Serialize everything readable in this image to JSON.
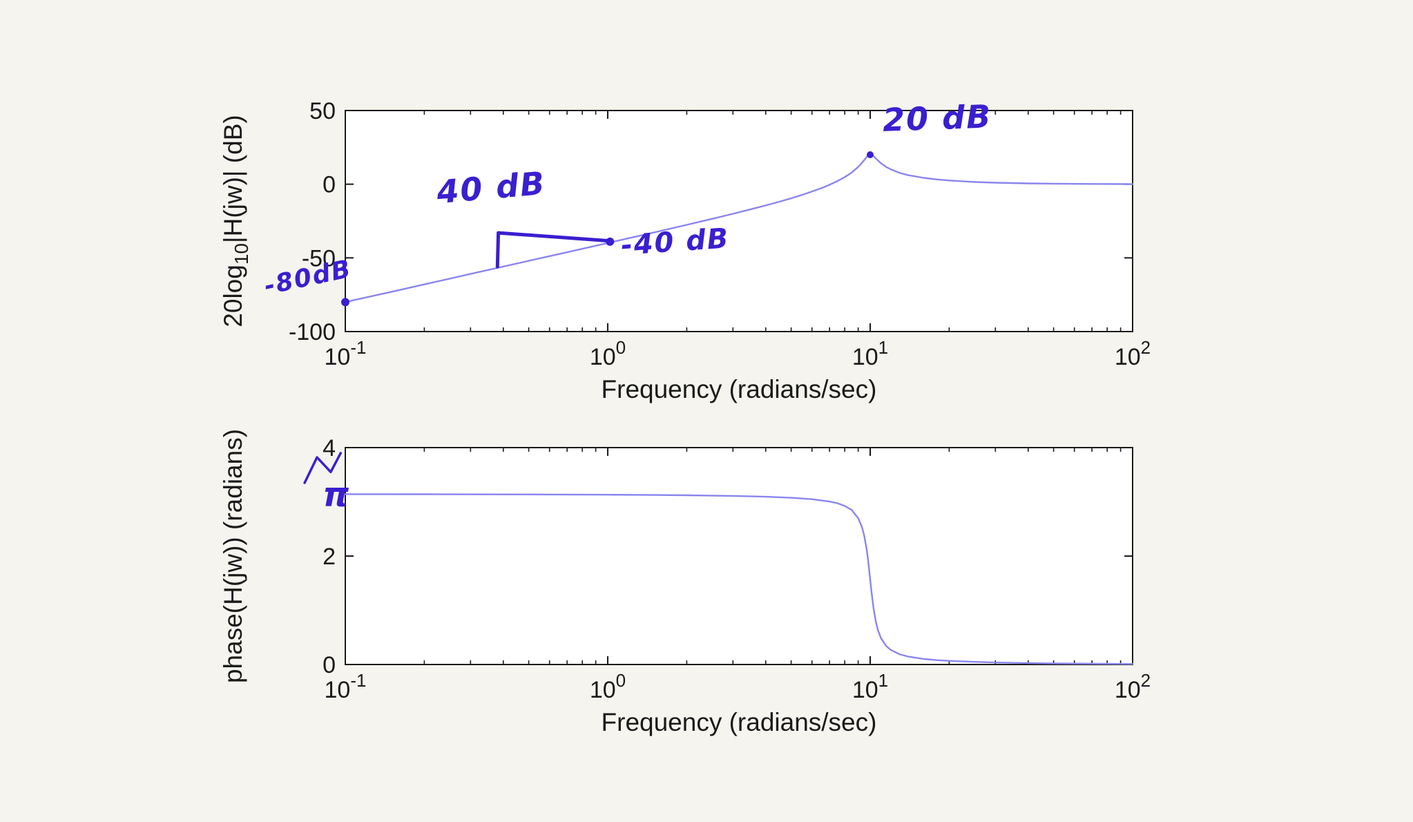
{
  "figure": {
    "background": "#f5f4ef",
    "plot_background": "#ffffff"
  },
  "colors": {
    "curve": "#8a85ee",
    "ink": "#3a1fd0",
    "axis": "#1a1a1a"
  },
  "chart_data": [
    {
      "id": "magnitude",
      "type": "line",
      "xscale": "log",
      "grid": false,
      "xlabel": "Frequency (radians/sec)",
      "ylabel": "20log10|H(jw)| (dB)",
      "ylabel_parts": [
        {
          "t": "20log"
        },
        {
          "t": "10",
          "sub": true
        },
        {
          "t": "|H(jw)| (dB)"
        }
      ],
      "xlim": [
        0.1,
        100
      ],
      "ylim": [
        -100,
        50
      ],
      "yticks": [
        50,
        0,
        -50,
        -100
      ],
      "xtick_exponents": [
        -1,
        0,
        1,
        2
      ],
      "series": [
        {
          "name": "magnitude-response-dB",
          "points": [
            [
              0.1,
              -80
            ],
            [
              0.15,
              -73
            ],
            [
              0.2,
              -68
            ],
            [
              0.3,
              -60.9
            ],
            [
              0.5,
              -52
            ],
            [
              0.7,
              -46.2
            ],
            [
              1,
              -39.9
            ],
            [
              1.5,
              -32.8
            ],
            [
              2,
              -27.6
            ],
            [
              2.5,
              -23.5
            ],
            [
              3,
              -20.1
            ],
            [
              3.5,
              -17.1
            ],
            [
              4,
              -14.4
            ],
            [
              4.5,
              -11.9
            ],
            [
              5,
              -9.6
            ],
            [
              5.5,
              -7.3
            ],
            [
              6,
              -5
            ],
            [
              6.5,
              -2.8
            ],
            [
              7,
              -0.4
            ],
            [
              7.5,
              2.1
            ],
            [
              8,
              4.8
            ],
            [
              8.5,
              7.9
            ],
            [
              9,
              11.7
            ],
            [
              9.2,
              13.5
            ],
            [
              9.5,
              16.4
            ],
            [
              9.7,
              18.4
            ],
            [
              9.9,
              19.7
            ],
            [
              10,
              20
            ],
            [
              10.1,
              19.9
            ],
            [
              10.3,
              19
            ],
            [
              10.5,
              17.5
            ],
            [
              10.7,
              16.1
            ],
            [
              11,
              14.2
            ],
            [
              11.5,
              11.7
            ],
            [
              12,
              10
            ],
            [
              13,
              7.6
            ],
            [
              14,
              6.1
            ],
            [
              16,
              4.3
            ],
            [
              18,
              3.2
            ],
            [
              20,
              2.5
            ],
            [
              25,
              1.5
            ],
            [
              30,
              1
            ],
            [
              40,
              0.55
            ],
            [
              50,
              0.36
            ],
            [
              70,
              0.18
            ],
            [
              100,
              0.09
            ]
          ]
        }
      ],
      "annotations": [
        {
          "name": "slope-label-40db",
          "kind": "text",
          "text": "40 dB",
          "x": 0.225,
          "y": -13,
          "rotate": -5,
          "size": 46
        },
        {
          "name": "slope-step-stroke",
          "kind": "stroke",
          "points": [
            [
              0.38,
              -56
            ],
            [
              0.383,
              -33
            ],
            [
              1.02,
              -38.5
            ]
          ],
          "width": 5
        },
        {
          "name": "point-dot-1rad",
          "kind": "dot",
          "x": 1.02,
          "y": -39,
          "r": 6
        },
        {
          "name": "label-minus-40db",
          "kind": "text",
          "text": "-40 dB",
          "x": 1.13,
          "y": -48,
          "rotate": -4,
          "size": 40
        },
        {
          "name": "point-dot-0p1rad",
          "kind": "dot",
          "x": 0.1,
          "y": -80,
          "r": 6
        },
        {
          "name": "label-minus-80db",
          "kind": "text",
          "text": "-80dB",
          "x": 0.05,
          "y": -75,
          "rotate": -12,
          "size": 36
        },
        {
          "name": "point-dot-peak",
          "kind": "dot",
          "x": 10,
          "y": 20,
          "r": 5
        },
        {
          "name": "label-20db",
          "kind": "text",
          "text": "20 dB",
          "x": 11.2,
          "y": 36,
          "rotate": -2,
          "size": 46
        }
      ]
    },
    {
      "id": "phase",
      "type": "line",
      "xscale": "log",
      "grid": false,
      "xlabel": "Frequency (radians/sec)",
      "ylabel": "phase(H(jw)) (radians)",
      "ylabel_parts": [
        {
          "t": "phase(H(jw)) (radians)"
        }
      ],
      "xlim": [
        0.1,
        100
      ],
      "ylim": [
        0,
        4
      ],
      "yticks": [
        4,
        2,
        0
      ],
      "xtick_exponents": [
        -1,
        0,
        1,
        2
      ],
      "series": [
        {
          "name": "phase-response-radians",
          "points": [
            [
              0.1,
              3.141
            ],
            [
              0.2,
              3.14
            ],
            [
              0.5,
              3.136
            ],
            [
              1,
              3.131
            ],
            [
              1.5,
              3.126
            ],
            [
              2,
              3.121
            ],
            [
              3,
              3.109
            ],
            [
              4,
              3.094
            ],
            [
              5,
              3.075
            ],
            [
              6,
              3.048
            ],
            [
              7,
              3.005
            ],
            [
              7.5,
              2.975
            ],
            [
              8,
              2.923
            ],
            [
              8.5,
              2.851
            ],
            [
              9,
              2.699
            ],
            [
              9.3,
              2.539
            ],
            [
              9.5,
              2.369
            ],
            [
              9.7,
              2.118
            ],
            [
              9.8,
              1.955
            ],
            [
              9.9,
              1.769
            ],
            [
              10,
              1.571
            ],
            [
              10.1,
              1.374
            ],
            [
              10.3,
              1.037
            ],
            [
              10.5,
              0.798
            ],
            [
              10.7,
              0.636
            ],
            [
              11,
              0.483
            ],
            [
              11.5,
              0.343
            ],
            [
              12,
              0.266
            ],
            [
              13,
              0.186
            ],
            [
              14,
              0.145
            ],
            [
              16,
              0.102
            ],
            [
              18,
              0.08
            ],
            [
              20,
              0.067
            ],
            [
              25,
              0.048
            ],
            [
              30,
              0.037
            ],
            [
              40,
              0.027
            ],
            [
              50,
              0.021
            ],
            [
              70,
              0.015
            ],
            [
              100,
              0.01
            ]
          ]
        }
      ],
      "annotations": [
        {
          "name": "label-pi",
          "kind": "text",
          "text": "π",
          "x": 0.082,
          "y": 2.92,
          "rotate": 0,
          "size": 48
        },
        {
          "name": "pi-flourish-stroke",
          "kind": "stroke",
          "points": [
            [
              0.07,
              3.35
            ],
            [
              0.078,
              3.82
            ],
            [
              0.088,
              3.55
            ],
            [
              0.096,
              3.9
            ]
          ],
          "width": 3.5
        }
      ]
    }
  ]
}
